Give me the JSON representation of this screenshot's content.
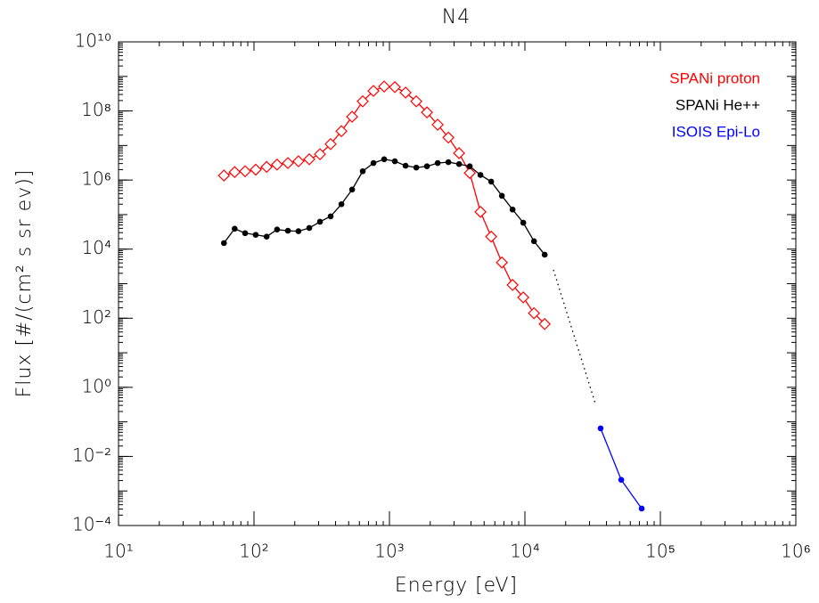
{
  "chart_data": {
    "type": "line",
    "title": "N4",
    "x_label": "Energy [eV]",
    "y_label": "Flux [#/(cm² s sr ev)]",
    "x_scale": "log",
    "y_scale": "log",
    "xlim": [
      10,
      1000000
    ],
    "ylim": [
      0.0001,
      10000000000
    ],
    "xticks": [
      {
        "value": 10,
        "label": "10¹"
      },
      {
        "value": 100,
        "label": "10²"
      },
      {
        "value": 1000,
        "label": "10³"
      },
      {
        "value": 10000,
        "label": "10⁴"
      },
      {
        "value": 100000,
        "label": "10⁵"
      },
      {
        "value": 1000000,
        "label": "10⁶"
      }
    ],
    "yticks": [
      {
        "value": 0.0001,
        "label": "10⁻⁴"
      },
      {
        "value": 0.01,
        "label": "10⁻²"
      },
      {
        "value": 1,
        "label": "10⁰"
      },
      {
        "value": 100,
        "label": "10²"
      },
      {
        "value": 10000,
        "label": "10⁴"
      },
      {
        "value": 1000000,
        "label": "10⁶"
      },
      {
        "value": 100000000,
        "label": "10⁸"
      },
      {
        "value": 10000000000,
        "label": "10¹⁰"
      }
    ],
    "legend": "upper right",
    "series": [
      {
        "name": "SPANi proton",
        "color": "#ff0000",
        "marker": "diamond",
        "x": [
          60,
          72,
          86,
          103,
          124,
          148,
          178,
          213,
          256,
          307,
          368,
          442,
          530,
          635,
          762,
          914,
          1096,
          1315,
          1578,
          1892,
          2270,
          2723,
          3266,
          3917,
          4699,
          5636,
          6761,
          8110,
          9727,
          11668,
          13996
        ],
        "values": [
          1350000,
          1700000,
          1800000,
          2000000,
          2400000,
          2800000,
          3100000,
          3500000,
          4000000,
          5600000,
          11000000,
          26000000,
          68000000,
          190000000,
          380000000,
          510000000,
          490000000,
          340000000,
          190000000,
          91000000,
          40000000,
          17000000,
          6000000,
          1600000,
          120000,
          23000,
          4100,
          920,
          400,
          140,
          68
        ]
      },
      {
        "name": "SPANi He++",
        "color": "#000000",
        "marker": "circle",
        "x": [
          60,
          72,
          86,
          103,
          124,
          148,
          178,
          213,
          256,
          307,
          368,
          442,
          530,
          635,
          762,
          914,
          1096,
          1315,
          1578,
          1892,
          2270,
          2723,
          3266,
          3917,
          4699,
          5636,
          6761,
          8110,
          9727,
          11668,
          13996
        ],
        "values": [
          15000,
          39000,
          29000,
          26000,
          23000,
          37000,
          34000,
          33000,
          41000,
          62000,
          89000,
          200000,
          530000,
          1800000,
          3100000,
          4000000,
          3500000,
          2600000,
          2300000,
          2500000,
          3100000,
          3300000,
          2900000,
          2500000,
          1400000,
          900000,
          350000,
          140000,
          58000,
          17000,
          6900
        ]
      },
      {
        "name": "ISOIS Epi-Lo",
        "color": "#0000ff",
        "marker": "circle",
        "x": [
          36200,
          51400,
          72800
        ],
        "values": [
          0.065,
          0.0021,
          0.00031
        ]
      }
    ]
  }
}
